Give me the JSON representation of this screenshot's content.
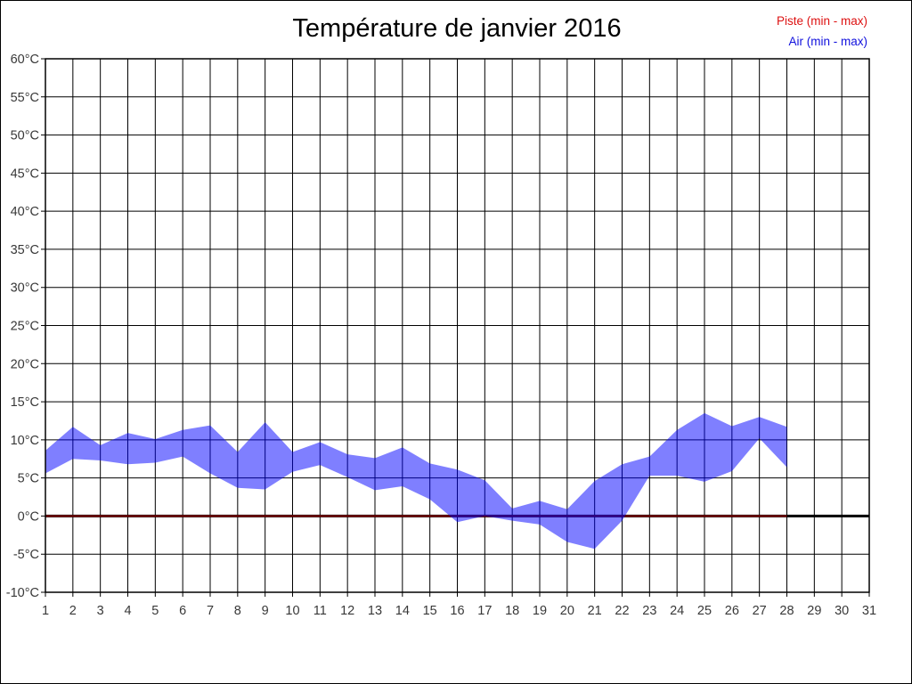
{
  "page": {
    "background": "#ffffff",
    "border_color": "#000000"
  },
  "title": {
    "text": "Température de janvier 2016",
    "color": "#000000"
  },
  "legend": {
    "items": [
      {
        "label": "Piste (min - max)",
        "color": "#dd1111"
      },
      {
        "label": "Air (min - max)",
        "color": "#1111dd"
      }
    ]
  },
  "chart_data": {
    "type": "area",
    "title": "Température de janvier 2016",
    "xlabel": "",
    "ylabel": "",
    "x_unit": "day of month",
    "y_unit": "°C",
    "ylim": [
      -10,
      60
    ],
    "ytick_step": 5,
    "ytick_labels": [
      "60°C",
      "55°C",
      "50°C",
      "45°C",
      "40°C",
      "35°C",
      "30°C",
      "25°C",
      "20°C",
      "15°C",
      "10°C",
      "5°C",
      "0°C",
      "-5°C",
      "-10°C"
    ],
    "xtick_labels": [
      "1",
      "2",
      "3",
      "4",
      "5",
      "6",
      "7",
      "8",
      "9",
      "10",
      "11",
      "12",
      "13",
      "14",
      "15",
      "16",
      "17",
      "18",
      "19",
      "20",
      "21",
      "22",
      "23",
      "24",
      "25",
      "26",
      "27",
      "28",
      "29",
      "30",
      "31"
    ],
    "grid": true,
    "grid_color": "#000000",
    "axis_text_color": "#383838",
    "zero_line": {
      "value": 0,
      "color": "#000000",
      "width": 3
    },
    "legend_position": "top-right",
    "series": [
      {
        "name": "Piste (min - max)",
        "band": true,
        "days": [
          1,
          2,
          3,
          4,
          5,
          6,
          7,
          8,
          9,
          10,
          11,
          12,
          13,
          14,
          15,
          16,
          17,
          18,
          19,
          20,
          21,
          22,
          23,
          24,
          25,
          26,
          27,
          28
        ],
        "min": [
          0,
          0,
          0,
          0,
          0,
          0,
          0,
          0,
          0,
          0,
          0,
          0,
          0,
          0,
          0,
          0,
          0,
          0,
          0,
          0,
          0,
          0,
          0,
          0,
          0,
          0,
          0,
          0
        ],
        "max": [
          0,
          0,
          0,
          0,
          0,
          0,
          0,
          0,
          0,
          0,
          0,
          0,
          0,
          0,
          0,
          0,
          0,
          0,
          0,
          0,
          0,
          0,
          0,
          0,
          0,
          0,
          0,
          0
        ],
        "render_color": "#7a0000",
        "legend_color": "#dd1111"
      },
      {
        "name": "Air (min - max)",
        "band": true,
        "days": [
          1,
          2,
          3,
          4,
          5,
          6,
          7,
          8,
          9,
          10,
          11,
          12,
          13,
          14,
          15,
          16,
          17,
          18,
          19,
          20,
          21,
          22,
          23,
          24,
          25,
          26,
          27,
          28
        ],
        "min": [
          5.6,
          7.5,
          7.3,
          6.8,
          7.0,
          7.8,
          5.6,
          3.7,
          3.5,
          5.8,
          6.7,
          5.1,
          3.4,
          3.9,
          2.2,
          -0.8,
          0.0,
          -0.6,
          -1.1,
          -3.4,
          -4.3,
          -0.6,
          5.3,
          5.3,
          4.5,
          5.9,
          10.2,
          6.4
        ],
        "max": [
          8.6,
          11.7,
          9.3,
          10.9,
          10.1,
          11.3,
          11.9,
          8.4,
          12.3,
          8.4,
          9.7,
          8.1,
          7.6,
          9.0,
          6.9,
          6.1,
          4.7,
          1.0,
          2.0,
          0.9,
          4.6,
          6.8,
          7.8,
          11.3,
          13.5,
          11.8,
          13.0,
          11.7
        ],
        "render_color": "rgba(0,0,255,0.5)",
        "legend_color": "#1111dd"
      }
    ]
  }
}
